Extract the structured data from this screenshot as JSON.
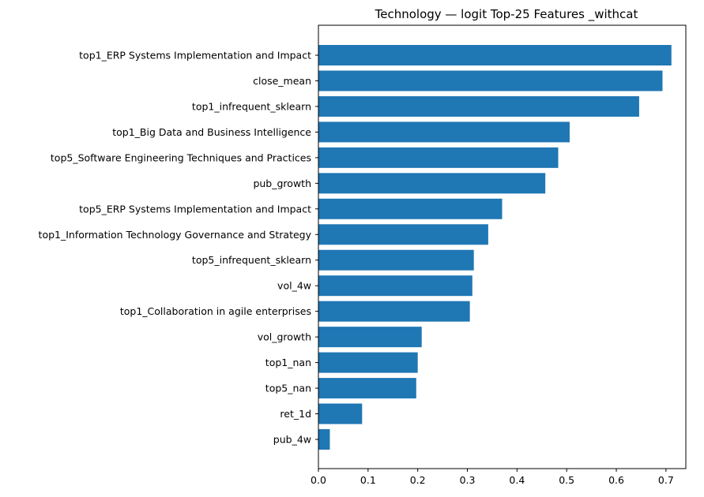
{
  "chart_data": {
    "type": "bar",
    "orientation": "horizontal",
    "title": "Technology — logit Top-25 Features _withcat",
    "xlabel": "",
    "ylabel": "",
    "categories": [
      "top1_ERP Systems Implementation and Impact",
      "close_mean",
      "top1_infrequent_sklearn",
      "top1_Big Data and Business Intelligence",
      "top5_Software Engineering Techniques and Practices",
      "pub_growth",
      "top5_ERP Systems Implementation and Impact",
      "top1_Information Technology Governance and Strategy",
      "top5_infrequent_sklearn",
      "vol_4w",
      "top1_Collaboration in agile enterprises",
      "vol_growth",
      "top1_nan",
      "top5_nan",
      "ret_1d",
      "pub_4w"
    ],
    "values": [
      0.711,
      0.693,
      0.646,
      0.506,
      0.483,
      0.457,
      0.37,
      0.342,
      0.313,
      0.31,
      0.305,
      0.208,
      0.2,
      0.197,
      0.088,
      0.023
    ],
    "xlim": [
      0,
      0.74
    ],
    "xticks": [
      0,
      0.1,
      0.2,
      0.3,
      0.4,
      0.5,
      0.6,
      0.7
    ],
    "xtick_labels": [
      "0.0",
      "0.1",
      "0.2",
      "0.3",
      "0.4",
      "0.5",
      "0.6",
      "0.7"
    ],
    "bar_color": "#1f77b4",
    "grid": false,
    "legend": "none"
  }
}
